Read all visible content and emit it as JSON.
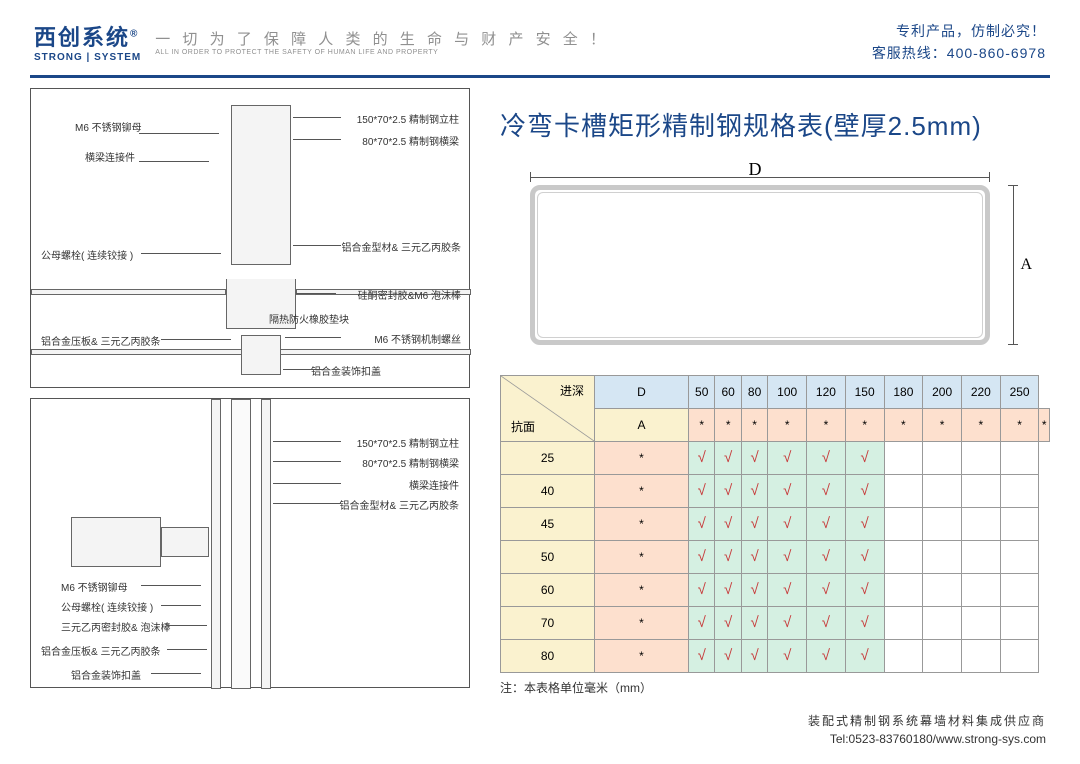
{
  "header": {
    "logo_cn": "西创系统",
    "logo_en": "STRONG | SYSTEM",
    "reg": "®",
    "slogan_cn": "一 切 为 了 保 障 人 类 的 生 命 与 财 产 安 全 ！",
    "slogan_en": "ALL IN ORDER TO PROTECT THE SAFETY OF HUMAN LIFE AND PROPERTY",
    "patent": "专利产品，仿制必究！",
    "hotline": "客服热线：400-860-6978"
  },
  "title": "冷弯卡槽矩形精制钢规格表(壁厚2.5mm)",
  "dim": {
    "D": "D",
    "A": "A"
  },
  "labels_top": {
    "l1": "150*70*2.5 精制钢立柱",
    "l2": "80*70*2.5 精制钢横梁",
    "l3": "M6 不锈钢铆母",
    "l4": "横梁连接件",
    "l5": "公母螺栓( 连续铰接 )",
    "l6": "铝合金型材& 三元乙丙胶条",
    "l7": "硅酮密封胶&M6 泡沫棒",
    "l8": "隔热防火橡胶垫块",
    "l9": "M6 不锈钢机制螺丝",
    "l10": "铝合金压板& 三元乙丙胶条",
    "l11": "铝合金装饰扣盖"
  },
  "labels_bot": {
    "l1": "150*70*2.5 精制钢立柱",
    "l2": "80*70*2.5 精制钢横梁",
    "l3": "横梁连接件",
    "l4": "铝合金型材& 三元乙丙胶条",
    "l5": "M6 不锈钢铆母",
    "l6": "公母螺栓( 连续铰接 )",
    "l7": "三元乙丙密封胶& 泡沫棒",
    "l8": "铝合金压板& 三元乙丙胶条",
    "l9": "铝合金装饰扣盖"
  },
  "table": {
    "corner_top": "进深",
    "corner_bot": "抗面",
    "col_header_first": "D",
    "cols": [
      "50",
      "60",
      "80",
      "100",
      "120",
      "150",
      "180",
      "200",
      "220",
      "250"
    ],
    "row_header_first": "A",
    "rows": [
      "25",
      "40",
      "45",
      "50",
      "60",
      "70",
      "80"
    ],
    "colors": {
      "header_row": "#d5e6f3",
      "header_col": "#faf2cf",
      "peach": "#fde0ce",
      "mint": "#d5f0e2",
      "check": "#c73a3a"
    },
    "grid": {
      "A": [
        "*",
        "*",
        "*",
        "*",
        "*",
        "*",
        "*",
        "*",
        "*",
        "*",
        "*"
      ],
      "25": [
        "*",
        "√",
        "√",
        "√",
        "√",
        "√",
        "√",
        "",
        "",
        "",
        ""
      ],
      "40": [
        "*",
        "√",
        "√",
        "√",
        "√",
        "√",
        "√",
        "",
        "",
        "",
        ""
      ],
      "45": [
        "*",
        "√",
        "√",
        "√",
        "√",
        "√",
        "√",
        "",
        "",
        "",
        ""
      ],
      "50": [
        "*",
        "√",
        "√",
        "√",
        "√",
        "√",
        "√",
        "",
        "",
        "",
        ""
      ],
      "60": [
        "*",
        "√",
        "√",
        "√",
        "√",
        "√",
        "√",
        "",
        "",
        "",
        ""
      ],
      "70": [
        "*",
        "√",
        "√",
        "√",
        "√",
        "√",
        "√",
        "",
        "",
        "",
        ""
      ],
      "80": [
        "*",
        "√",
        "√",
        "√",
        "√",
        "√",
        "√",
        "",
        "",
        "",
        ""
      ]
    },
    "note": "注：本表格单位毫米（mm）"
  },
  "footer": {
    "line1": "装配式精制钢系统幕墙材料集成供应商",
    "line2": "Tel:0523-83760180/www.strong-sys.com"
  }
}
